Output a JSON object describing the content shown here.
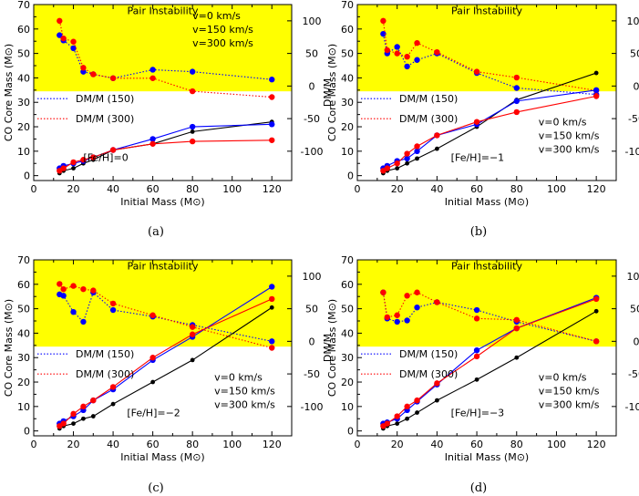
{
  "colors": {
    "black": "#000000",
    "blue": "#0000ff",
    "red": "#ff0000",
    "band": "#ffff00"
  },
  "chart_data": [
    {
      "type": "line",
      "caption": "(a)",
      "xlabel": "Initial Mass (M⊙)",
      "ylabel": "CO Core Mass (M⊙)",
      "y2label": "DM/M",
      "xlim": [
        0,
        130
      ],
      "ylim": [
        -2,
        70
      ],
      "y2lim": [
        -145,
        125
      ],
      "xticks": [
        "0",
        "20",
        "40",
        "60",
        "80",
        "100",
        "120"
      ],
      "yticks": [
        "0",
        "10",
        "20",
        "30",
        "40",
        "50",
        "60",
        "70"
      ],
      "y2ticks": [
        "-100",
        "-50",
        "0",
        "50",
        "100"
      ],
      "band_label": "Pair Instability",
      "band_ylim": [
        34.5,
        70
      ],
      "vlegend_pos": "top-right",
      "vlegend": [
        {
          "text": "v=0 km/s",
          "color": "black"
        },
        {
          "text": "v=150 km/s",
          "color": "blue"
        },
        {
          "text": "v=300 km/s",
          "color": "red"
        }
      ],
      "dm_legend": [
        "DM/M (150)",
        "DM/M (300)"
      ],
      "metal_label": "[Fe/H]=0",
      "core_series": [
        {
          "name": "v=0 km/s",
          "color": "black",
          "x": [
            13,
            15,
            20,
            25,
            30,
            40,
            60,
            80,
            120
          ],
          "y": [
            1,
            2,
            3,
            5,
            6.5,
            10.5,
            13,
            18,
            22
          ]
        },
        {
          "name": "v=150 km/s",
          "color": "blue",
          "x": [
            13,
            15,
            20,
            25,
            30,
            40,
            60,
            80,
            120
          ],
          "y": [
            3,
            4,
            5,
            6,
            7.5,
            10.5,
            15,
            20,
            21
          ]
        },
        {
          "name": "v=300 km/s",
          "color": "red",
          "x": [
            13,
            15,
            20,
            25,
            30,
            40,
            60,
            80,
            120
          ],
          "y": [
            2,
            3,
            5.5,
            6.5,
            7.5,
            10.5,
            13,
            14,
            14.5
          ]
        }
      ],
      "dm_series": [
        {
          "name": "DM/M (150)",
          "color": "blue",
          "x": [
            13,
            15,
            20,
            25,
            30,
            40,
            60,
            80,
            120
          ],
          "y": [
            78,
            70,
            58,
            22,
            18,
            12,
            25,
            22,
            10
          ]
        },
        {
          "name": "DM/M (300)",
          "color": "red",
          "x": [
            13,
            15,
            20,
            25,
            30,
            40,
            60,
            80,
            120
          ],
          "y": [
            100,
            73,
            68,
            28,
            18,
            12,
            12,
            -8,
            -17
          ]
        }
      ]
    },
    {
      "type": "line",
      "caption": "(b)",
      "xlabel": "Initial Mass (M⊙)",
      "ylabel": "CO Core Mass (M⊙)",
      "y2label": "DM/M",
      "xlim": [
        0,
        130
      ],
      "ylim": [
        -2,
        70
      ],
      "y2lim": [
        -145,
        125
      ],
      "xticks": [
        "0",
        "20",
        "40",
        "60",
        "80",
        "100",
        "120"
      ],
      "yticks": [
        "0",
        "10",
        "20",
        "30",
        "40",
        "50",
        "60",
        "70"
      ],
      "y2ticks": [
        "-100",
        "-50",
        "0",
        "50",
        "100"
      ],
      "band_label": "Pair Instability",
      "band_ylim": [
        34.5,
        70
      ],
      "vlegend_pos": "bottom-right",
      "vlegend": [
        {
          "text": "v=0 km/s",
          "color": "black"
        },
        {
          "text": "v=150 km/s",
          "color": "blue"
        },
        {
          "text": "v=300 km/s",
          "color": "red"
        }
      ],
      "dm_legend": [
        "DM/M (150)",
        "DM/M (300)"
      ],
      "metal_label": "[Fe/H]=−1",
      "core_series": [
        {
          "name": "v=0 km/s",
          "color": "black",
          "x": [
            13,
            15,
            20,
            25,
            30,
            40,
            60,
            80,
            120
          ],
          "y": [
            1,
            2,
            3,
            5,
            7,
            11,
            20,
            31,
            42
          ]
        },
        {
          "name": "v=150 km/s",
          "color": "blue",
          "x": [
            13,
            15,
            20,
            25,
            30,
            40,
            60,
            80,
            120
          ],
          "y": [
            3,
            4,
            6,
            7,
            10,
            16.5,
            21,
            30.5,
            35
          ]
        },
        {
          "name": "v=300 km/s",
          "color": "red",
          "x": [
            13,
            15,
            20,
            25,
            30,
            40,
            60,
            80,
            120
          ],
          "y": [
            2,
            3,
            5,
            9,
            12,
            16.5,
            22,
            26,
            32.5
          ]
        }
      ],
      "dm_series": [
        {
          "name": "DM/M (150)",
          "color": "blue",
          "x": [
            13,
            15,
            20,
            25,
            30,
            40,
            60,
            80,
            120
          ],
          "y": [
            80,
            50,
            60,
            30,
            40,
            50,
            20,
            -3,
            -13
          ]
        },
        {
          "name": "DM/M (300)",
          "color": "red",
          "x": [
            13,
            15,
            20,
            25,
            30,
            40,
            60,
            80,
            120
          ],
          "y": [
            100,
            55,
            50,
            45,
            66,
            52,
            22,
            13,
            -7
          ]
        }
      ]
    },
    {
      "type": "line",
      "caption": "(c)",
      "xlabel": "Initial Mass (M⊙)",
      "ylabel": "CO Core Mass (M⊙)",
      "y2label": "DM/M",
      "xlim": [
        0,
        130
      ],
      "ylim": [
        -2,
        70
      ],
      "y2lim": [
        -145,
        125
      ],
      "xticks": [
        "0",
        "20",
        "40",
        "60",
        "80",
        "100",
        "120"
      ],
      "yticks": [
        "0",
        "10",
        "20",
        "30",
        "40",
        "50",
        "60",
        "70"
      ],
      "y2ticks": [
        "-100",
        "-50",
        "0",
        "50",
        "100"
      ],
      "band_label": "Pair Instability",
      "band_ylim": [
        34.5,
        70
      ],
      "vlegend_pos": "bottom-right",
      "vlegend": [
        {
          "text": "v=0 km/s",
          "color": "black"
        },
        {
          "text": "v=150 km/s",
          "color": "blue"
        },
        {
          "text": "v=300 km/s",
          "color": "red"
        }
      ],
      "dm_legend": [
        "DM/M (150)",
        "DM/M (300)"
      ],
      "metal_label": "[Fe/H]=−2",
      "core_series": [
        {
          "name": "v=0 km/s",
          "color": "black",
          "x": [
            13,
            15,
            20,
            25,
            30,
            40,
            60,
            80,
            120
          ],
          "y": [
            1,
            2,
            3,
            5,
            6,
            11,
            20,
            29,
            50.5
          ]
        },
        {
          "name": "v=150 km/s",
          "color": "blue",
          "x": [
            13,
            15,
            20,
            25,
            30,
            40,
            60,
            80,
            120
          ],
          "y": [
            3,
            4,
            6,
            8.5,
            12.5,
            17,
            29,
            38.5,
            59
          ]
        },
        {
          "name": "v=300 km/s",
          "color": "red",
          "x": [
            13,
            15,
            20,
            25,
            30,
            40,
            60,
            80,
            120
          ],
          "y": [
            2,
            3,
            7,
            10,
            12.5,
            18,
            30,
            39.5,
            54
          ]
        }
      ],
      "dm_series": [
        {
          "name": "DM/M (150)",
          "color": "blue",
          "x": [
            13,
            15,
            20,
            25,
            30,
            40,
            60,
            80,
            120
          ],
          "y": [
            72,
            70,
            45,
            30,
            75,
            48,
            38,
            25,
            0
          ]
        },
        {
          "name": "DM/M (300)",
          "color": "red",
          "x": [
            13,
            15,
            20,
            25,
            30,
            40,
            60,
            80,
            120
          ],
          "y": [
            88,
            80,
            85,
            80,
            78,
            58,
            40,
            22,
            -10
          ]
        }
      ]
    },
    {
      "type": "line",
      "caption": "(d)",
      "xlabel": "Initial Mass (M⊙)",
      "ylabel": "CO Core Mass (M⊙)",
      "y2label": "DM/M",
      "xlim": [
        0,
        130
      ],
      "ylim": [
        -2,
        70
      ],
      "y2lim": [
        -145,
        125
      ],
      "xticks": [
        "0",
        "20",
        "40",
        "60",
        "80",
        "100",
        "120"
      ],
      "yticks": [
        "0",
        "10",
        "20",
        "30",
        "40",
        "50",
        "60",
        "70"
      ],
      "y2ticks": [
        "-100",
        "-50",
        "0",
        "50",
        "100"
      ],
      "band_label": "Pair Instability",
      "band_ylim": [
        34.5,
        70
      ],
      "vlegend_pos": "bottom-right",
      "vlegend": [
        {
          "text": "v=0 km/s",
          "color": "black"
        },
        {
          "text": "v=150 km/s",
          "color": "blue"
        },
        {
          "text": "v=300 km/s",
          "color": "red"
        }
      ],
      "dm_legend": [
        "DM/M (150)",
        "DM/M (300)"
      ],
      "metal_label": "[Fe/H]=−3",
      "core_series": [
        {
          "name": "v=0 km/s",
          "color": "black",
          "x": [
            13,
            15,
            20,
            25,
            30,
            40,
            60,
            80,
            120
          ],
          "y": [
            1,
            2,
            3,
            5,
            7.5,
            12.5,
            21,
            30,
            49
          ]
        },
        {
          "name": "v=150 km/s",
          "color": "blue",
          "x": [
            13,
            15,
            20,
            25,
            30,
            40,
            60,
            80,
            120
          ],
          "y": [
            3,
            3.5,
            5,
            8.5,
            12,
            19,
            33,
            42,
            54.5
          ]
        },
        {
          "name": "v=300 km/s",
          "color": "red",
          "x": [
            13,
            15,
            20,
            25,
            30,
            40,
            60,
            80,
            120
          ],
          "y": [
            2,
            3,
            6,
            10,
            12.5,
            19.5,
            30.5,
            42,
            54
          ]
        }
      ],
      "dm_series": [
        {
          "name": "DM/M (150)",
          "color": "blue",
          "x": [
            13,
            15,
            20,
            25,
            30,
            40,
            60,
            80,
            120
          ],
          "y": [
            75,
            35,
            30,
            32,
            52,
            60,
            48,
            30,
            0
          ]
        },
        {
          "name": "DM/M (300)",
          "color": "red",
          "x": [
            13,
            15,
            20,
            25,
            30,
            40,
            60,
            80,
            120
          ],
          "y": [
            75,
            37,
            40,
            70,
            75,
            60,
            35,
            33,
            0
          ]
        }
      ]
    }
  ]
}
